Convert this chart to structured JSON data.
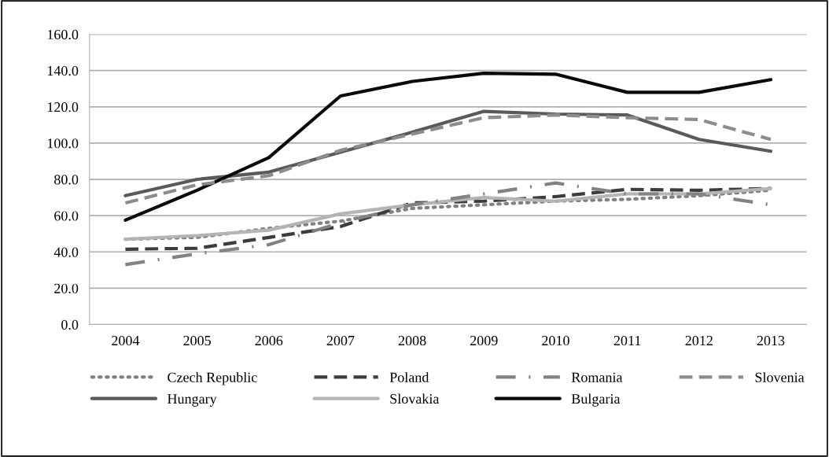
{
  "chart_data": {
    "type": "line",
    "categories": [
      "2004",
      "2005",
      "2006",
      "2007",
      "2008",
      "2009",
      "2010",
      "2011",
      "2012",
      "2013"
    ],
    "ylim": [
      0,
      160
    ],
    "yticks": [
      {
        "value": 0,
        "label": "0.0"
      },
      {
        "value": 20,
        "label": "20.0"
      },
      {
        "value": 40,
        "label": "40.0"
      },
      {
        "value": 60,
        "label": "60.0"
      },
      {
        "value": 80,
        "label": "80.0"
      },
      {
        "value": 100,
        "label": "100.0"
      },
      {
        "value": 120,
        "label": "120.0"
      },
      {
        "value": 140,
        "label": "140.0"
      },
      {
        "value": 160,
        "label": "160.0"
      }
    ],
    "grid": "y",
    "legend": "bottom",
    "marker": "none",
    "series": [
      {
        "name": "Czech Republic",
        "color": "#808080",
        "line_style": "dotted",
        "values": [
          47,
          48,
          53,
          57,
          64,
          66,
          68,
          69,
          71,
          74
        ]
      },
      {
        "name": "Hungary",
        "color": "#5a5a5a",
        "line_style": "solid",
        "values": [
          71,
          80,
          84,
          95,
          106,
          117.5,
          116,
          115.5,
          102,
          95.5
        ]
      },
      {
        "name": "Poland",
        "color": "#3c3c3c",
        "line_style": "dashed",
        "values": [
          41.5,
          42,
          48,
          54,
          67,
          68,
          70.5,
          74.5,
          74,
          75
        ]
      },
      {
        "name": "Slovakia",
        "color": "#b4b4b4",
        "line_style": "solid",
        "values": [
          47,
          49,
          52,
          61,
          66,
          70,
          68,
          72,
          72,
          75
        ]
      },
      {
        "name": "Romania",
        "color": "#828282",
        "line_style": "dashdot",
        "values": [
          33,
          39,
          44,
          56,
          66,
          72,
          78,
          72,
          72,
          66
        ]
      },
      {
        "name": "Bulgaria",
        "color": "#0a0a0a",
        "line_style": "solid",
        "values": [
          57.5,
          74,
          92,
          126,
          134,
          138.5,
          138,
          128,
          128,
          135
        ]
      },
      {
        "name": "Slovenia",
        "color": "#8c8c8c",
        "line_style": "dashed",
        "values": [
          67,
          77,
          82,
          96,
          105,
          114,
          115.5,
          114,
          113,
          102
        ]
      }
    ]
  }
}
